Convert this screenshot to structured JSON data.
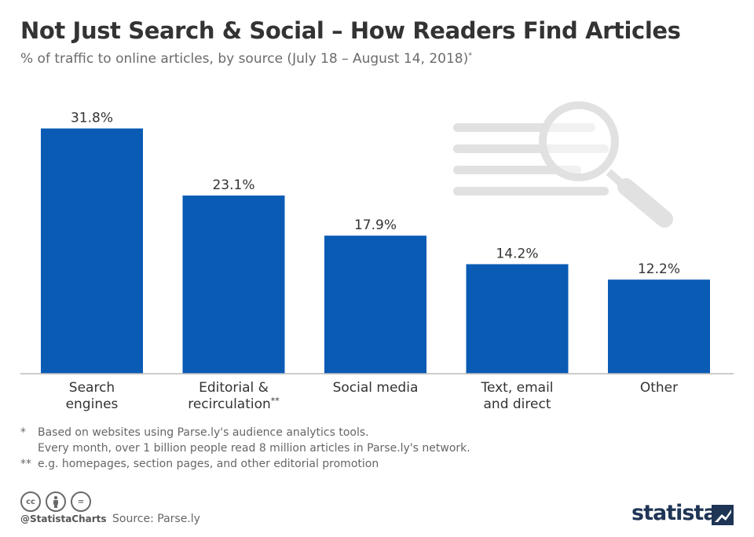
{
  "header": {
    "title": "Not Just Search & Social – How Readers Find Articles",
    "subtitle": "% of traffic to online articles, by source (July 18 – August 14, 2018)",
    "subtitle_mark": "*"
  },
  "chart_data": {
    "type": "bar",
    "categories": [
      [
        "Search",
        "engines"
      ],
      [
        "Editorial &",
        "recirculation**"
      ],
      [
        "Social media"
      ],
      [
        "Text, email",
        "and direct"
      ],
      [
        "Other"
      ]
    ],
    "values": [
      31.8,
      23.1,
      17.9,
      14.2,
      12.2
    ],
    "value_labels": [
      "31.8%",
      "23.1%",
      "17.9%",
      "14.2%",
      "12.2%"
    ],
    "ylim": [
      0,
      34
    ],
    "grid": false,
    "bar_color": "#0a5bb4",
    "baseline_color": "#bbbbbb"
  },
  "decoration": {
    "illustration_icon": "magnifying-glass-over-text-icon",
    "illustration_color": "#e1e1e1"
  },
  "footnotes": {
    "mark1": "*",
    "line1": "Based on websites using Parse.ly's audience analytics tools.",
    "line2": "Every month, over 1 billion people read 8 million articles in Parse.ly's network.",
    "mark2": "**",
    "line3": "e.g. homepages, section pages, and other editorial promotion"
  },
  "footer": {
    "cc_icons": [
      "creative-commons-icon",
      "attribution-person-icon",
      "no-derivatives-equals-icon"
    ],
    "cc_label": "cc",
    "nd_label": "=",
    "handle": "@StatistaCharts",
    "source": "Source: Parse.ly",
    "brand": "statista",
    "brand_color": "#1f3556"
  }
}
